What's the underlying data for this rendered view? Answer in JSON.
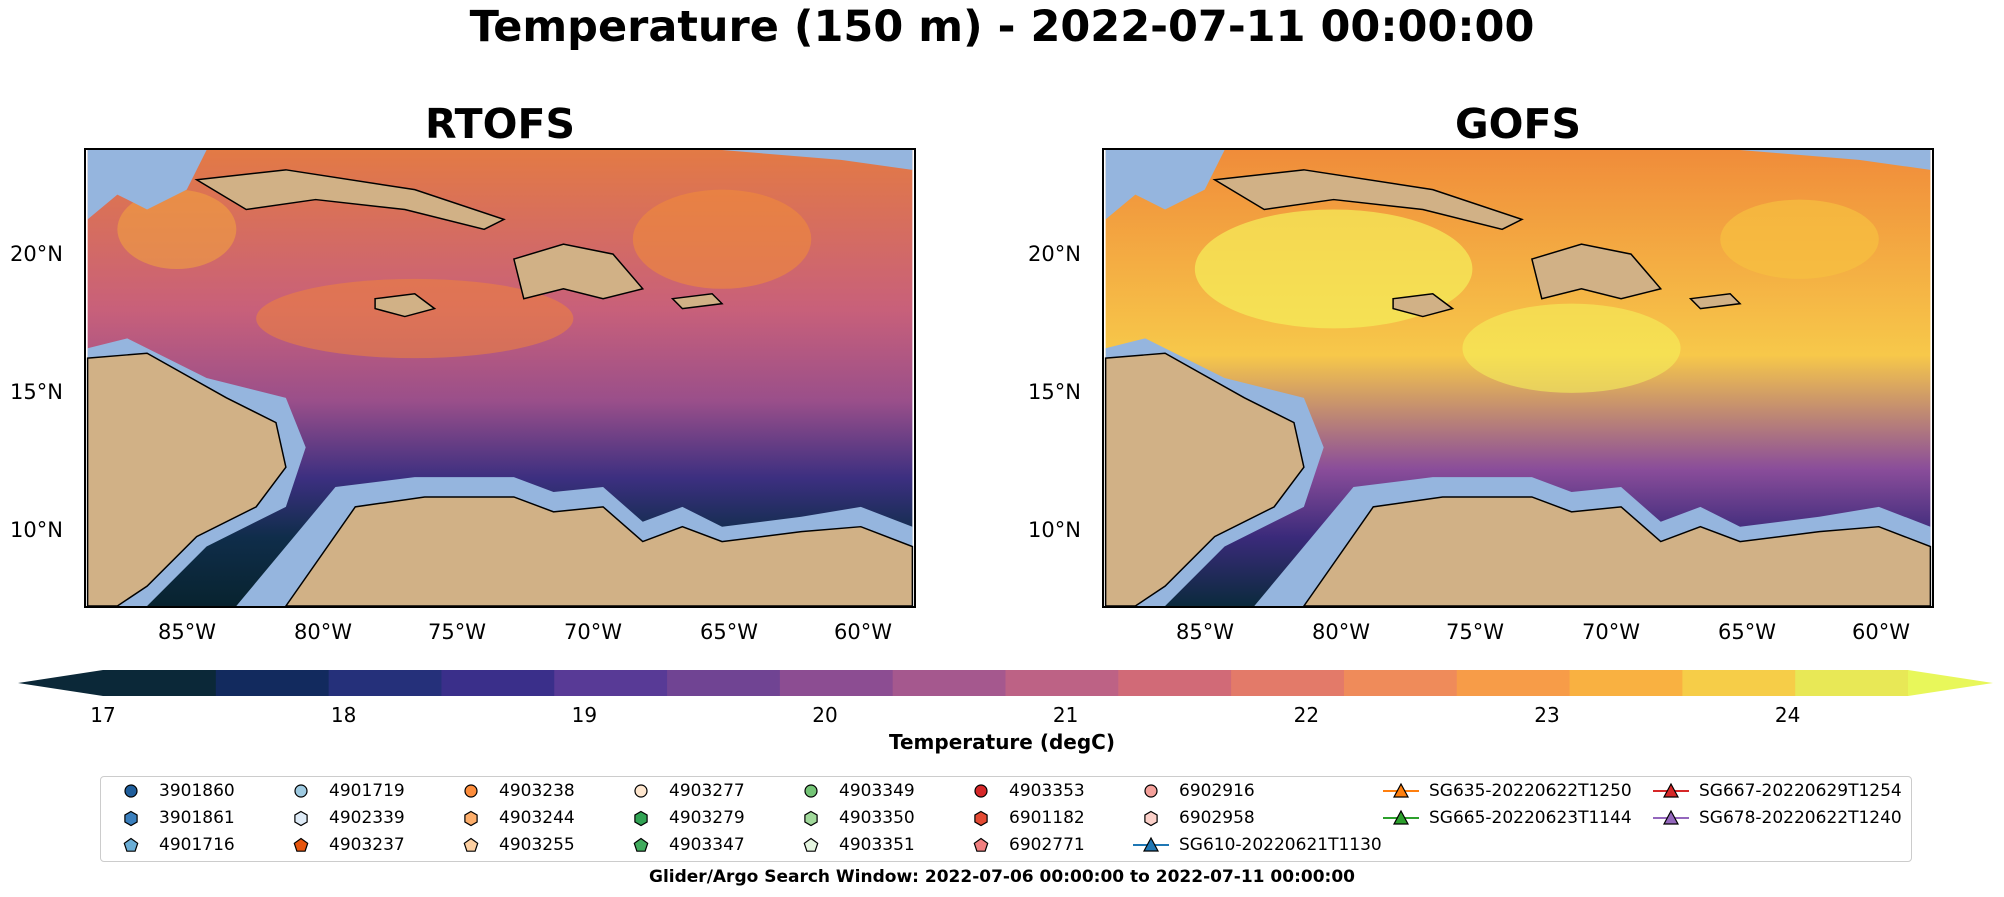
{
  "title": "Temperature (150 m) - 2022-07-11 00:00:00",
  "panels": [
    {
      "title": "RTOFS"
    },
    {
      "title": "GOFS"
    }
  ],
  "axes": {
    "lon_labels": [
      "85°W",
      "80°W",
      "75°W",
      "70°W",
      "65°W",
      "60°W"
    ],
    "lat_labels": [
      "20°N",
      "15°N",
      "10°N"
    ]
  },
  "colorbar": {
    "label": "Temperature (degC)",
    "ticks": [
      "17",
      "18",
      "19",
      "20",
      "21",
      "22",
      "23",
      "24"
    ],
    "range": [
      17,
      24.5
    ],
    "extend": "both",
    "colormap": "thermal"
  },
  "legend": {
    "items": [
      {
        "label": "3901860",
        "marker": "circle",
        "color": "#1f5e9c"
      },
      {
        "label": "3901861",
        "marker": "hexagon",
        "color": "#3a7fbd"
      },
      {
        "label": "4901716",
        "marker": "pentagon",
        "color": "#6baed6"
      },
      {
        "label": "4901719",
        "marker": "circle",
        "color": "#9ecae1"
      },
      {
        "label": "4902339",
        "marker": "hexagon",
        "color": "#deebf7"
      },
      {
        "label": "4903237",
        "marker": "pentagon",
        "color": "#e6550d"
      },
      {
        "label": "4903238",
        "marker": "circle",
        "color": "#fd8d3c"
      },
      {
        "label": "4903244",
        "marker": "hexagon",
        "color": "#fdae6b"
      },
      {
        "label": "4903255",
        "marker": "pentagon",
        "color": "#fdd0a2"
      },
      {
        "label": "4903277",
        "marker": "circle",
        "color": "#fee6ce"
      },
      {
        "label": "4903279",
        "marker": "hexagon",
        "color": "#31a354"
      },
      {
        "label": "4903347",
        "marker": "pentagon",
        "color": "#41ab5d"
      },
      {
        "label": "4903349",
        "marker": "circle",
        "color": "#74c476"
      },
      {
        "label": "4903350",
        "marker": "hexagon",
        "color": "#a1d99b"
      },
      {
        "label": "4903351",
        "marker": "pentagon",
        "color": "#e5f5e0"
      },
      {
        "label": "4903353",
        "marker": "circle",
        "color": "#d62728"
      },
      {
        "label": "6901182",
        "marker": "hexagon",
        "color": "#e34a33"
      },
      {
        "label": "6902771",
        "marker": "pentagon",
        "color": "#f07f7f"
      },
      {
        "label": "6902916",
        "marker": "circle",
        "color": "#f4a09a"
      },
      {
        "label": "6902958",
        "marker": "hexagon",
        "color": "#fbd0c9"
      },
      {
        "label": "SG610-20220621T1130",
        "marker": "triangle",
        "color": "#1f77b4"
      },
      {
        "label": "SG635-20220622T1250",
        "marker": "triangle",
        "color": "#ff7f0e"
      },
      {
        "label": "SG665-20220623T1144",
        "marker": "triangle",
        "color": "#2ca02c"
      },
      {
        "label": "SG667-20220629T1254",
        "marker": "triangle",
        "color": "#d62728"
      },
      {
        "label": "SG678-20220622T1240",
        "marker": "triangle",
        "color": "#9467bd"
      }
    ]
  },
  "footer": "Glider/Argo Search Window: 2022-07-06 00:00:00 to 2022-07-11 00:00:00"
}
